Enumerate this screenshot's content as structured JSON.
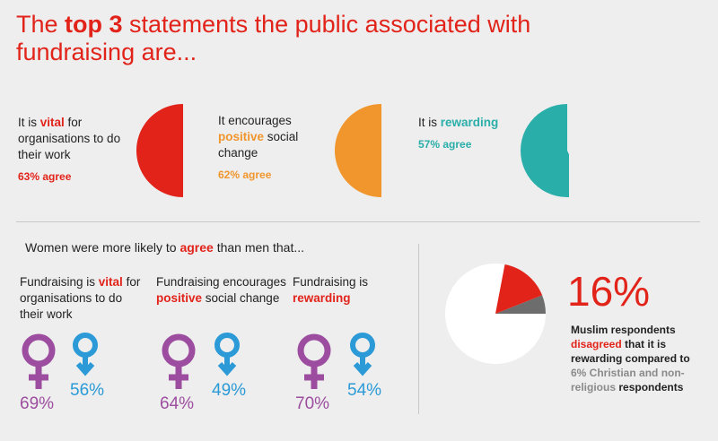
{
  "title": {
    "pre": "The ",
    "bold": "top 3",
    "post": " statements the public associated with fundraising are..."
  },
  "statements": [
    {
      "pre": "It is ",
      "hl": "vital",
      "post": " for organisations to do their work",
      "agree": "63% agree",
      "value": 63,
      "color": "#e2231a"
    },
    {
      "pre": "It encourages ",
      "hl": "positive",
      "post": " social change",
      "agree": "62% agree",
      "value": 62,
      "color": "#f0962d"
    },
    {
      "pre": "It is ",
      "hl": "rewarding",
      "post": "",
      "agree": "57% agree",
      "value": 57,
      "color": "#2aaea9"
    }
  ],
  "women": {
    "heading_pre": "Women were more likely to ",
    "heading_hl": "agree",
    "heading_post": " than men that...",
    "items": [
      {
        "pre": "Fundraising is ",
        "hl": "vital",
        "post": " for organisations to do their work",
        "female": "69%",
        "male": "56%"
      },
      {
        "pre": "Fundraising encourages ",
        "hl": "positive",
        "post": " social change",
        "female": "64%",
        "male": "49%"
      },
      {
        "pre": "Fundraising is ",
        "hl": "rewarding",
        "post": "",
        "female": "70%",
        "male": "54%"
      }
    ],
    "female_color": "#9c4d9f",
    "male_color": "#2b9ad6"
  },
  "muslim": {
    "big_pct": "16%",
    "muslim_share": 16,
    "other_share": 6,
    "text1": "Muslim respondents",
    "hl": "disagreed",
    "text2": " that it is rewarding compared to ",
    "grey": "6% Christian and non-religious",
    "text3": " respondents",
    "colors": {
      "muslim": "#e2231a",
      "other": "#6d6d6d",
      "rest": "#ffffff"
    }
  }
}
